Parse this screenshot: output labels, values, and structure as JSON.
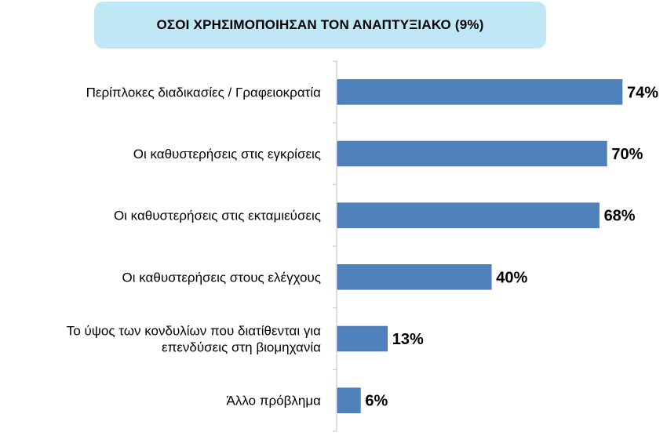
{
  "title": "ΟΣΟΙ ΧΡΗΣΙΜΟΠΟΙΗΣΑΝ ΤΟΝ ΑΝΑΠΤΥΞΙΑΚΟ (9%)",
  "colors": {
    "bar": "#4f81bd",
    "bar_border": "#3a6aa8",
    "title_bg": "#bfe7f5",
    "axis": "#bfbfbf"
  },
  "chart_data": {
    "type": "bar",
    "orientation": "horizontal",
    "title": "ΟΣΟΙ ΧΡΗΣΙΜΟΠΟΙΗΣΑΝ ΤΟΝ ΑΝΑΠΤΥΞΙΑΚΟ (9%)",
    "categories": [
      [
        "Περίπλοκες διαδικασίες / Γραφειοκρατία"
      ],
      [
        "Οι καθυστερήσεις στις εγκρίσεις"
      ],
      [
        "Οι καθυστερήσεις στις εκταμιεύσεις"
      ],
      [
        "Οι καθυστερήσεις στους ελέγχους"
      ],
      [
        "Το ύψος των κονδυλίων που διατίθενται για",
        "επενδύσεις στη βιομηχανία"
      ],
      [
        "Άλλο πρόβλημα"
      ]
    ],
    "values": [
      74,
      70,
      68,
      40,
      13,
      6
    ],
    "value_labels": [
      "74%",
      "70%",
      "68%",
      "40%",
      "13%",
      "6%"
    ],
    "xlim": [
      0,
      100
    ],
    "grid": false,
    "legend": "none"
  }
}
